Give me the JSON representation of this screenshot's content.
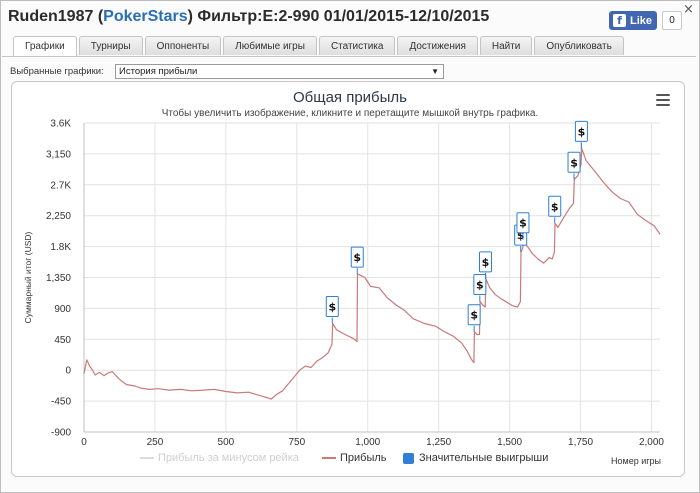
{
  "window": {
    "title_prefix": "Ruden1987 (",
    "site": "PokerStars",
    "title_suffix": ") Фильтр:E:2-990 01/01/2015-12/10/2015",
    "close": "×",
    "fb_like": "Like",
    "fb_count": "0"
  },
  "tabs": [
    "Графики",
    "Турниры",
    "Оппоненты",
    "Любимые игры",
    "Статистика",
    "Достижения",
    "Найти",
    "Опубликовать"
  ],
  "selector": {
    "label": "Выбранные графики:",
    "value": "История прибыли"
  },
  "chart_data": {
    "type": "line",
    "title": "Общая прибыль",
    "subtitle": "Чтобы увеличить изображение, кликните и перетащите мышкой внутрь графика.",
    "xlabel": "Номер игры",
    "ylabel": "Суммарный итог (USD)",
    "xlim": [
      0,
      2030
    ],
    "ylim": [
      -900,
      3600
    ],
    "x_ticks": [
      "0",
      "250",
      "500",
      "750",
      "1,000",
      "1,250",
      "1,500",
      "1,750",
      "2,000"
    ],
    "y_ticks": [
      "3.6K",
      "3,150",
      "2.7K",
      "2,250",
      "1.8K",
      "1,350",
      "900",
      "450",
      "0",
      "-450",
      "-900"
    ],
    "legend": [
      "Прибыль за минусом рейка",
      "Прибыль",
      "Значительные выигрыши"
    ],
    "legend_disabled": [
      true,
      false,
      false
    ],
    "series": [
      {
        "name": "Прибыль",
        "color": "#c97a7a",
        "x": [
          0,
          10,
          20,
          30,
          40,
          55,
          70,
          85,
          100,
          115,
          130,
          150,
          180,
          200,
          230,
          260,
          300,
          340,
          380,
          420,
          460,
          500,
          540,
          580,
          620,
          660,
          680,
          700,
          720,
          740,
          760,
          780,
          800,
          820,
          840,
          860,
          874,
          876,
          890,
          920,
          950,
          962,
          964,
          975,
          990,
          1010,
          1040,
          1070,
          1100,
          1130,
          1160,
          1200,
          1240,
          1270,
          1300,
          1330,
          1350,
          1365,
          1374,
          1376,
          1385,
          1394,
          1396,
          1405,
          1414,
          1416,
          1430,
          1450,
          1470,
          1490,
          1510,
          1528,
          1538,
          1540,
          1546,
          1548,
          1560,
          1580,
          1600,
          1620,
          1640,
          1650,
          1658,
          1660,
          1670,
          1690,
          1710,
          1725,
          1728,
          1740,
          1752,
          1754,
          1770,
          1800,
          1830,
          1860,
          1890,
          1920,
          1950,
          1980,
          2010,
          2030
        ],
        "y": [
          -50,
          150,
          60,
          0,
          -70,
          -30,
          -80,
          -40,
          -20,
          -90,
          -150,
          -210,
          -230,
          -260,
          -280,
          -270,
          -290,
          -280,
          -300,
          -290,
          -280,
          -310,
          -330,
          -320,
          -370,
          -420,
          -350,
          -300,
          -200,
          -100,
          0,
          60,
          40,
          130,
          180,
          250,
          380,
          680,
          590,
          520,
          460,
          420,
          1400,
          1380,
          1350,
          1220,
          1200,
          1050,
          950,
          870,
          750,
          680,
          640,
          560,
          500,
          400,
          280,
          160,
          110,
          560,
          520,
          520,
          1000,
          950,
          920,
          1330,
          1200,
          1100,
          1040,
          990,
          940,
          920,
          1000,
          1720,
          1780,
          1900,
          1820,
          1700,
          1620,
          1560,
          1640,
          1620,
          1720,
          2140,
          2080,
          2220,
          2350,
          2430,
          2780,
          2830,
          3000,
          3230,
          3050,
          2900,
          2740,
          2600,
          2500,
          2450,
          2270,
          2180,
          2100,
          1980
        ]
      }
    ],
    "big_wins": [
      {
        "x": 875,
        "y": 680
      },
      {
        "x": 963,
        "y": 1400
      },
      {
        "x": 1375,
        "y": 560
      },
      {
        "x": 1395,
        "y": 1000
      },
      {
        "x": 1415,
        "y": 1330
      },
      {
        "x": 1539,
        "y": 1720
      },
      {
        "x": 1547,
        "y": 1900
      },
      {
        "x": 1659,
        "y": 2140
      },
      {
        "x": 1727,
        "y": 2780
      },
      {
        "x": 1753,
        "y": 3230
      }
    ],
    "big_win_marker": "$",
    "grid": true
  }
}
